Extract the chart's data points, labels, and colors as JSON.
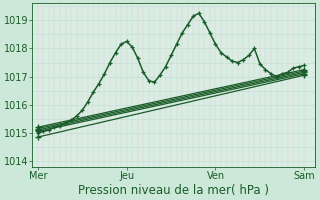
{
  "background_color": "#cce8d8",
  "plot_bg_color": "#d8ede4",
  "grid_color_v": "#e8c8c8",
  "grid_color_h": "#c8ddd6",
  "line_color": "#1a5c28",
  "title": "Pression niveau de la mer( hPa )",
  "xlabel_ticks": [
    "Mer",
    "Jeu",
    "Ven",
    "Sam"
  ],
  "xlabel_tick_positions": [
    0,
    48,
    96,
    144
  ],
  "ylabel_ticks": [
    1014,
    1015,
    1016,
    1017,
    1018,
    1019
  ],
  "ylim": [
    1013.8,
    1019.6
  ],
  "xlim": [
    -3,
    150
  ],
  "title_fontsize": 8.5,
  "tick_fontsize": 7,
  "straight_lines": [
    {
      "x0": 0,
      "y0": 1014.85,
      "x1": 144,
      "y1": 1017.05
    },
    {
      "x0": 0,
      "y0": 1015.05,
      "x1": 144,
      "y1": 1017.1
    },
    {
      "x0": 0,
      "y0": 1015.1,
      "x1": 144,
      "y1": 1017.15
    },
    {
      "x0": 0,
      "y0": 1015.15,
      "x1": 144,
      "y1": 1017.2
    },
    {
      "x0": 0,
      "y0": 1015.2,
      "x1": 144,
      "y1": 1017.25
    }
  ],
  "detail_line": {
    "x": [
      0,
      3,
      6,
      9,
      12,
      15,
      18,
      21,
      24,
      27,
      30,
      33,
      36,
      39,
      42,
      45,
      48,
      51,
      54,
      57,
      60,
      63,
      66,
      69,
      72,
      75,
      78,
      81,
      84,
      87,
      90,
      93,
      96,
      99,
      102,
      105,
      108,
      111,
      114,
      117,
      120,
      123,
      126,
      129,
      132,
      135,
      138,
      141,
      144
    ],
    "y": [
      1015.0,
      1015.05,
      1015.1,
      1015.2,
      1015.25,
      1015.35,
      1015.45,
      1015.6,
      1015.8,
      1016.1,
      1016.45,
      1016.75,
      1017.1,
      1017.5,
      1017.85,
      1018.15,
      1018.25,
      1018.05,
      1017.65,
      1017.15,
      1016.85,
      1016.8,
      1017.05,
      1017.35,
      1017.75,
      1018.15,
      1018.55,
      1018.85,
      1019.15,
      1019.25,
      1018.95,
      1018.55,
      1018.15,
      1017.85,
      1017.7,
      1017.55,
      1017.5,
      1017.6,
      1017.75,
      1018.0,
      1017.45,
      1017.25,
      1017.1,
      1017.0,
      1017.1,
      1017.15,
      1017.3,
      1017.35,
      1017.4
    ]
  }
}
